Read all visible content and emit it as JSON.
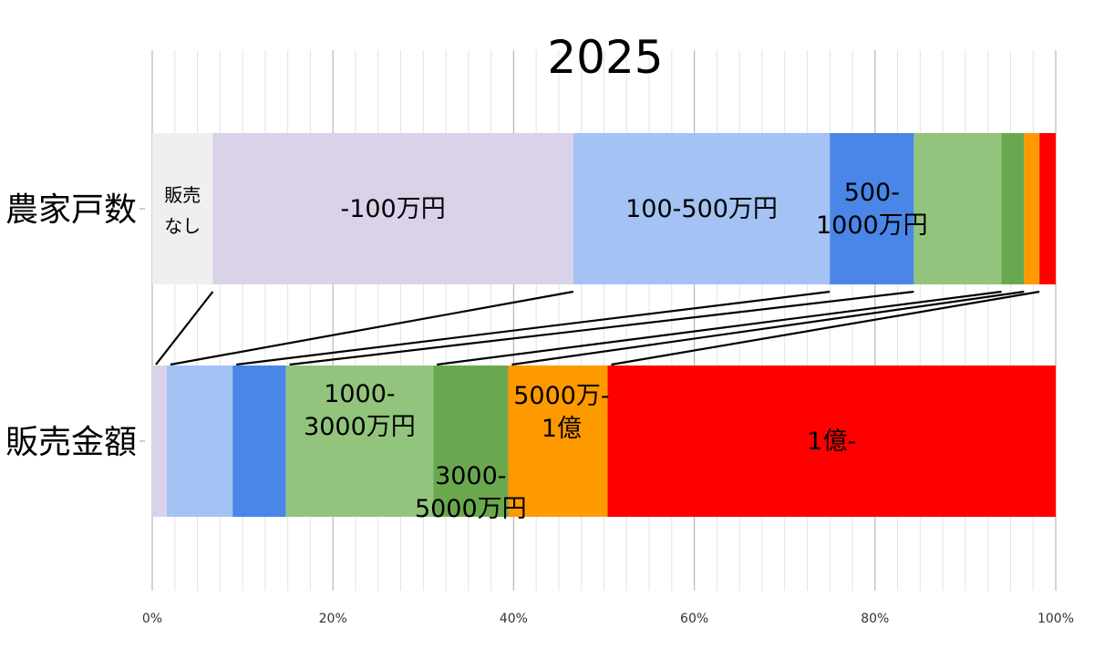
{
  "chart_data": {
    "type": "bar",
    "stacked": "percent",
    "orientation": "horizontal",
    "title": "2025",
    "categories": [
      "農家戸数",
      "販売金額"
    ],
    "xlim": [
      0,
      100
    ],
    "x_ticks": [
      "0%",
      "20%",
      "40%",
      "60%",
      "80%",
      "100%"
    ],
    "grid": true,
    "series": [
      {
        "key": "none",
        "color": "#efefef",
        "values": [
          6.7,
          0
        ]
      },
      {
        "key": "lt100",
        "color": "#d9d2e9",
        "values": [
          39.9,
          1.6
        ]
      },
      {
        "key": "100_500",
        "color": "#a4c2f4",
        "values": [
          28.4,
          7.3
        ]
      },
      {
        "key": "500_1000",
        "color": "#4a86e8",
        "values": [
          9.3,
          5.9
        ]
      },
      {
        "key": "1000_3000",
        "color": "#93c47d",
        "values": [
          9.7,
          16.3
        ]
      },
      {
        "key": "3000_5000",
        "color": "#6aa84f",
        "values": [
          2.5,
          8.3
        ]
      },
      {
        "key": "5000_1oku",
        "color": "#ff9900",
        "values": [
          1.7,
          11.0
        ]
      },
      {
        "key": "gt1oku",
        "color": "#ff0000",
        "values": [
          1.8,
          49.6
        ]
      }
    ],
    "segment_labels": {
      "none": [
        "販売",
        "なし"
      ],
      "lt100": [
        "-100万円"
      ],
      "100_500": [
        "100-500万円"
      ],
      "500_1000": [
        "500-",
        "1000万円"
      ],
      "1000_3000": [
        "1000-",
        "3000万円"
      ],
      "3000_5000": [
        "3000-",
        "5000万円"
      ],
      "5000_1oku": [
        "5000万-",
        "1億"
      ],
      "gt1oku": [
        "1億-"
      ]
    }
  }
}
